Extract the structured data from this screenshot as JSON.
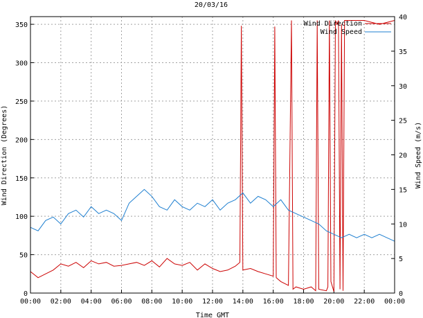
{
  "chart_data": {
    "type": "line",
    "title": "20/03/16",
    "xlabel": "Time GMT",
    "ylabel_left": "Wind Direction (Degrees)",
    "ylabel_right": "Wind Speed (m/s)",
    "x_range_hours": [
      0,
      24
    ],
    "x_ticks": [
      "00:00",
      "02:00",
      "04:00",
      "06:00",
      "08:00",
      "10:00",
      "12:00",
      "14:00",
      "16:00",
      "18:00",
      "20:00",
      "22:00",
      "00:00"
    ],
    "y_left": {
      "range": [
        0,
        360
      ],
      "ticks": [
        0,
        50,
        100,
        150,
        200,
        250,
        300,
        350
      ]
    },
    "y_right": {
      "range": [
        0,
        40
      ],
      "ticks": [
        0,
        5,
        10,
        15,
        20,
        25,
        30,
        35,
        40
      ]
    },
    "grid": true,
    "legend": "top-right",
    "series": [
      {
        "name": "Wind Direction",
        "axis": "left",
        "color": "#cc0000",
        "x": [
          0.0,
          0.5,
          1.0,
          1.5,
          2.0,
          2.5,
          3.0,
          3.5,
          4.0,
          4.5,
          5.0,
          5.5,
          6.0,
          6.5,
          7.0,
          7.5,
          8.0,
          8.5,
          9.0,
          9.5,
          10.0,
          10.5,
          11.0,
          11.5,
          12.0,
          12.5,
          13.0,
          13.5,
          13.8,
          13.9,
          14.0,
          14.5,
          15.0,
          15.5,
          16.0,
          16.1,
          16.2,
          16.5,
          17.0,
          17.2,
          17.3,
          17.5,
          18.0,
          18.5,
          18.8,
          18.9,
          19.0,
          19.5,
          19.6,
          19.7,
          19.8,
          20.0,
          20.1,
          20.2,
          20.3,
          20.4,
          20.5,
          20.6,
          20.7,
          21.0,
          22.0,
          23.0,
          24.0
        ],
        "values": [
          28,
          20,
          25,
          30,
          38,
          35,
          40,
          33,
          42,
          38,
          40,
          35,
          36,
          38,
          40,
          36,
          42,
          34,
          45,
          38,
          36,
          40,
          30,
          38,
          32,
          28,
          30,
          35,
          40,
          348,
          30,
          32,
          28,
          25,
          22,
          347,
          20,
          15,
          10,
          355,
          5,
          8,
          5,
          8,
          3,
          355,
          5,
          3,
          8,
          355,
          15,
          2,
          355,
          350,
          355,
          5,
          350,
          3,
          355,
          355,
          355,
          350,
          355
        ]
      },
      {
        "name": "Wind Speed",
        "axis": "right",
        "color": "#1e7fd0",
        "x": [
          0.0,
          0.5,
          1.0,
          1.5,
          2.0,
          2.5,
          3.0,
          3.5,
          4.0,
          4.5,
          5.0,
          5.5,
          6.0,
          6.5,
          7.0,
          7.5,
          8.0,
          8.5,
          9.0,
          9.5,
          10.0,
          10.5,
          11.0,
          11.5,
          12.0,
          12.5,
          13.0,
          13.5,
          14.0,
          14.5,
          15.0,
          15.5,
          16.0,
          16.5,
          17.0,
          17.5,
          18.0,
          18.5,
          19.0,
          19.5,
          20.0,
          20.5,
          21.0,
          21.5,
          22.0,
          22.5,
          23.0,
          23.5,
          24.0
        ],
        "values": [
          9.5,
          9.0,
          10.5,
          11.0,
          10.0,
          11.5,
          12.0,
          11.0,
          12.5,
          11.5,
          12.0,
          11.5,
          10.5,
          13.0,
          14.0,
          15.0,
          14.0,
          12.5,
          12.0,
          13.5,
          12.5,
          12.0,
          13.0,
          12.5,
          13.5,
          12.0,
          13.0,
          13.5,
          14.5,
          13.0,
          14.0,
          13.5,
          12.5,
          13.5,
          12.0,
          11.5,
          11.0,
          10.5,
          10.0,
          9.0,
          8.5,
          8.0,
          8.5,
          8.0,
          8.5,
          8.0,
          8.5,
          8.0,
          7.5
        ]
      }
    ]
  }
}
